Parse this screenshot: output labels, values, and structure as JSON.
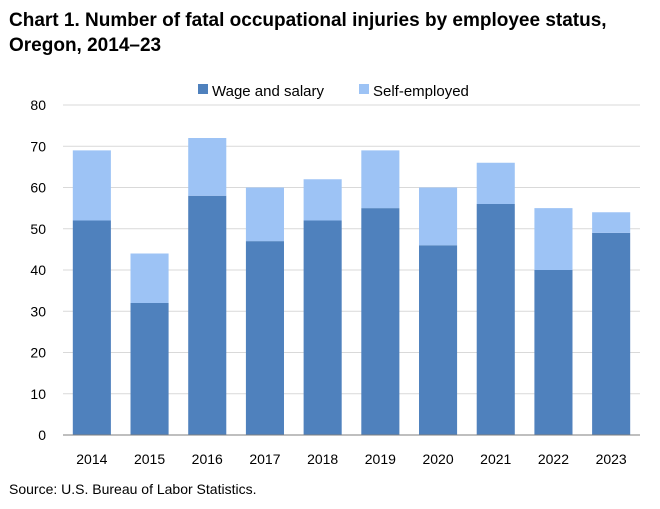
{
  "title": {
    "line1": "Chart 1. Number of fatal occupational injuries by employee status,",
    "line2": "Oregon, 2014–23"
  },
  "source": "Source: U.S. Bureau of Labor Statistics.",
  "colors": {
    "wage": "#4f81bd",
    "self": "#9dc3f5",
    "grid": "#d9d9d9",
    "axis": "#7f7f7f"
  },
  "chart_data": {
    "type": "bar",
    "stacked": true,
    "categories": [
      "2014",
      "2015",
      "2016",
      "2017",
      "2018",
      "2019",
      "2020",
      "2021",
      "2022",
      "2023"
    ],
    "series": [
      {
        "name": "Wage and salary",
        "values": [
          52,
          32,
          58,
          47,
          52,
          55,
          46,
          56,
          40,
          49
        ]
      },
      {
        "name": "Self-employed",
        "values": [
          17,
          12,
          14,
          13,
          10,
          14,
          14,
          10,
          15,
          5
        ]
      }
    ],
    "ylim": [
      0,
      80
    ],
    "yticks": [
      0,
      10,
      20,
      30,
      40,
      50,
      60,
      70,
      80
    ],
    "grid": true,
    "legend": "top-center"
  }
}
